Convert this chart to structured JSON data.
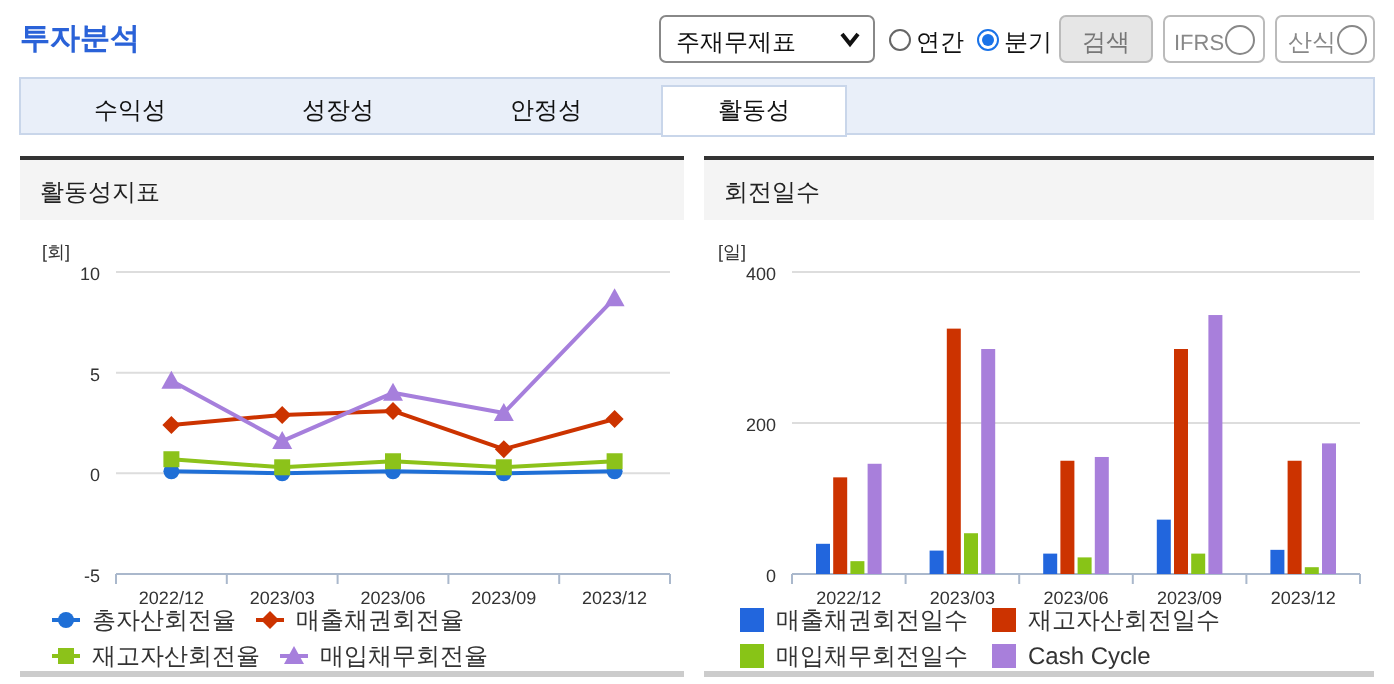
{
  "chart_data": [
    {
      "type": "other",
      "title": "투자분석",
      "categories": [
        "수익성",
        "성장성",
        "안정성",
        "활동성"
      ],
      "annotations": [
        "주재무제표",
        "연간",
        "분기",
        "검색",
        "IFRS",
        "산식"
      ]
    },
    {
      "type": "line",
      "title": "활동성지표",
      "ylabel": "[회]",
      "categories": [
        "2022/12",
        "2023/03",
        "2023/06",
        "2023/09",
        "2023/12"
      ],
      "ylim": [
        -5,
        10
      ],
      "yticks": [
        -5,
        0,
        5,
        10
      ],
      "grid": "y",
      "legend": "bottom",
      "series": [
        {
          "name": "총자산회전율",
          "color": "#1f6fd6",
          "marker": "circle",
          "values": [
            0.1,
            0,
            0.1,
            0,
            0.1
          ]
        },
        {
          "name": "매출채권회전율",
          "color": "#cc3300",
          "marker": "diamond",
          "values": [
            2.4,
            2.9,
            3.1,
            1.2,
            2.7
          ]
        },
        {
          "name": "재고자산회전율",
          "color": "#8cc21a",
          "marker": "square",
          "values": [
            0.7,
            0.3,
            0.6,
            0.3,
            0.6
          ]
        },
        {
          "name": "매입채무회전율",
          "color": "#a67fdc",
          "marker": "triangle",
          "values": [
            4.6,
            1.6,
            4.0,
            3.0,
            8.7
          ]
        }
      ]
    },
    {
      "type": "bar",
      "title": "회전일수",
      "ylabel": "[일]",
      "categories": [
        "2022/12",
        "2023/03",
        "2023/06",
        "2023/09",
        "2023/12"
      ],
      "ylim": [
        0,
        400
      ],
      "yticks": [
        0,
        200,
        400
      ],
      "grid": "y",
      "legend": "bottom",
      "series": [
        {
          "name": "매출채권회전일수",
          "color": "#2266dd",
          "values": [
            40,
            31,
            27,
            72,
            32
          ]
        },
        {
          "name": "재고자산회전일수",
          "color": "#cc3300",
          "values": [
            128,
            325,
            150,
            298,
            150
          ]
        },
        {
          "name": "매입채무회전일수",
          "color": "#88c417",
          "values": [
            17,
            54,
            22,
            27,
            9
          ]
        },
        {
          "name": "Cash Cycle",
          "color": "#a87fdb",
          "values": [
            146,
            298,
            155,
            343,
            173
          ]
        }
      ]
    }
  ]
}
